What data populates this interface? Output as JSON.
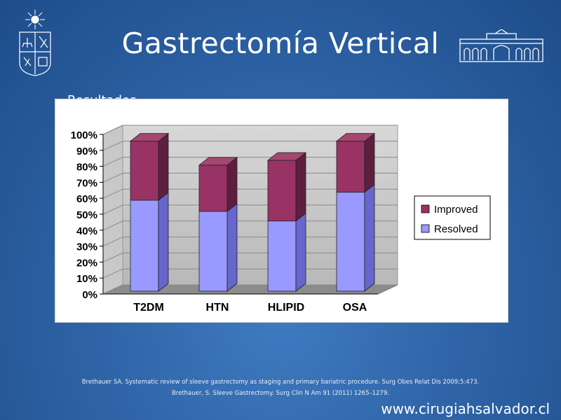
{
  "slide": {
    "title": "Gastrectomía Vertical",
    "partial_label": "Resultados",
    "references": [
      "Brethauer SA. Systematic review of sleeve gastrectomy as staging and primary bariatric procedure. Surg Obes Relat Dis 2009;5:473.",
      "Brethauer, S. Sleeve Gastrectomy. Surg Clin N Am 91 (2011) 1265–1279."
    ],
    "website": "www.cirugiahsalvador.cl"
  },
  "colors": {
    "resolved": "#9999ff",
    "improved": "#993366",
    "background": "#2f65a8"
  },
  "icons": [
    "university-seal-icon",
    "building-logo-icon"
  ],
  "chart_data": {
    "type": "bar",
    "stacked": true,
    "categories": [
      "T2DM",
      "HTN",
      "HLIPID",
      "OSA"
    ],
    "series": [
      {
        "name": "Resolved",
        "values": [
          57,
          50,
          44,
          62
        ]
      },
      {
        "name": "Improved",
        "values": [
          37,
          29,
          38,
          32
        ]
      }
    ],
    "ylim": [
      0,
      100
    ],
    "yticks": [
      "0%",
      "10%",
      "20%",
      "30%",
      "40%",
      "50%",
      "60%",
      "70%",
      "80%",
      "90%",
      "100%"
    ],
    "legend": [
      "Improved",
      "Resolved"
    ],
    "legend_position": "right",
    "grid": true,
    "three_d": true
  }
}
